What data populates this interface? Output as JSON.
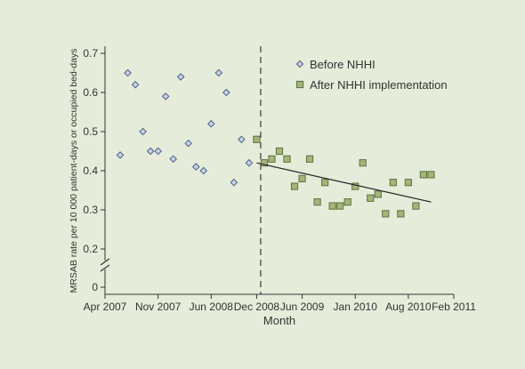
{
  "colors": {
    "background": "#e6ecda",
    "before_fill": "#c8d3e4",
    "before_stroke": "#4d5f86",
    "after_fill": "#a3b67a",
    "after_stroke": "#5f7040",
    "axis": "#333333"
  },
  "chart_data": {
    "type": "scatter",
    "xlabel": "Month",
    "ylabel": "MRSAB rate per 10 000 patient-days or occupied bed-days",
    "x_tick_labels": [
      "Apr 2007",
      "Nov 2007",
      "Jun 2008",
      "Dec 2008",
      "Jun 2009",
      "Jan 2010",
      "Aug 2010",
      "Feb 2011"
    ],
    "x_ticks": [
      "2007-04",
      "2007-11",
      "2008-06",
      "2008-12",
      "2009-06",
      "2010-01",
      "2010-08",
      "2011-02"
    ],
    "xlim": [
      "2007-04",
      "2011-02"
    ],
    "y_tick_labels": [
      "0",
      "0.2",
      "0.3",
      "0.4",
      "0.5",
      "0.6",
      "0.7"
    ],
    "ylim": [
      0.15,
      0.7
    ],
    "y_axis_break": true,
    "grid": false,
    "legend_position": "top-right",
    "intervention_line_at": "2009-01",
    "series": [
      {
        "name": "Before NHHI",
        "marker": "diamond",
        "points": [
          {
            "x": "2007-06",
            "y": 0.44
          },
          {
            "x": "2007-07",
            "y": 0.65
          },
          {
            "x": "2007-08",
            "y": 0.62
          },
          {
            "x": "2007-09",
            "y": 0.5
          },
          {
            "x": "2007-10",
            "y": 0.45
          },
          {
            "x": "2007-11",
            "y": 0.45
          },
          {
            "x": "2007-12",
            "y": 0.59
          },
          {
            "x": "2008-01",
            "y": 0.43
          },
          {
            "x": "2008-02",
            "y": 0.64
          },
          {
            "x": "2008-03",
            "y": 0.47
          },
          {
            "x": "2008-04",
            "y": 0.41
          },
          {
            "x": "2008-05",
            "y": 0.4
          },
          {
            "x": "2008-06",
            "y": 0.52
          },
          {
            "x": "2008-07",
            "y": 0.65
          },
          {
            "x": "2008-08",
            "y": 0.6
          },
          {
            "x": "2008-09",
            "y": 0.37
          },
          {
            "x": "2008-10",
            "y": 0.48
          },
          {
            "x": "2008-11",
            "y": 0.42
          }
        ]
      },
      {
        "name": "After NHHI implementation",
        "marker": "square",
        "points": [
          {
            "x": "2008-12",
            "y": 0.48
          },
          {
            "x": "2009-01",
            "y": 0.42
          },
          {
            "x": "2009-02",
            "y": 0.43
          },
          {
            "x": "2009-03",
            "y": 0.45
          },
          {
            "x": "2009-04",
            "y": 0.43
          },
          {
            "x": "2009-05",
            "y": 0.36
          },
          {
            "x": "2009-06",
            "y": 0.38
          },
          {
            "x": "2009-07",
            "y": 0.43
          },
          {
            "x": "2009-08",
            "y": 0.32
          },
          {
            "x": "2009-09",
            "y": 0.37
          },
          {
            "x": "2009-10",
            "y": 0.31
          },
          {
            "x": "2009-11",
            "y": 0.31
          },
          {
            "x": "2009-12",
            "y": 0.32
          },
          {
            "x": "2010-01",
            "y": 0.36
          },
          {
            "x": "2010-02",
            "y": 0.42
          },
          {
            "x": "2010-03",
            "y": 0.33
          },
          {
            "x": "2010-04",
            "y": 0.34
          },
          {
            "x": "2010-05",
            "y": 0.29
          },
          {
            "x": "2010-06",
            "y": 0.37
          },
          {
            "x": "2010-07",
            "y": 0.29
          },
          {
            "x": "2010-08",
            "y": 0.37
          },
          {
            "x": "2010-09",
            "y": 0.31
          },
          {
            "x": "2010-10",
            "y": 0.39
          },
          {
            "x": "2010-11",
            "y": 0.39
          }
        ]
      }
    ],
    "trend_line": {
      "series": "After NHHI implementation",
      "start": {
        "x": "2008-12",
        "y": 0.42
      },
      "end": {
        "x": "2010-11",
        "y": 0.32
      }
    }
  }
}
